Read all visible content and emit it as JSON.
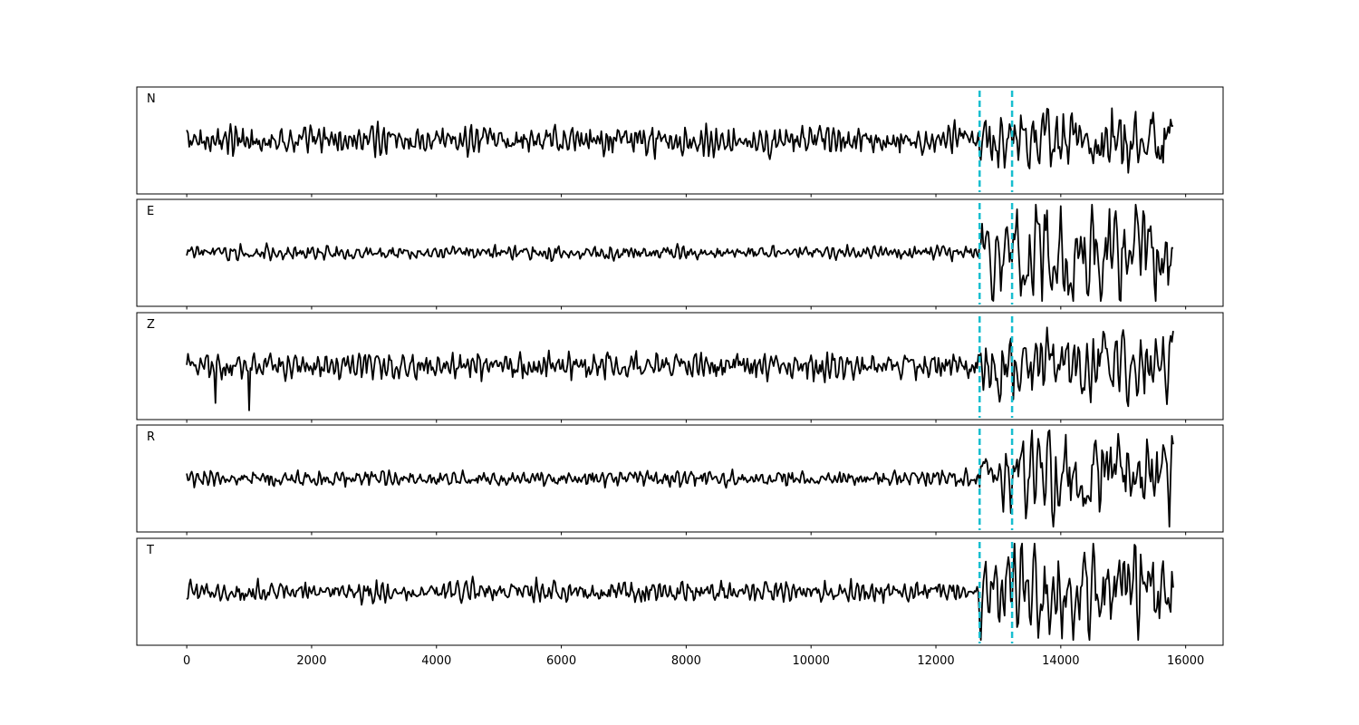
{
  "chart_data": {
    "type": "line",
    "x_range": [
      -800,
      15800
    ],
    "xlim": [
      -800,
      16600
    ],
    "xticks": [
      0,
      2000,
      4000,
      6000,
      8000,
      10000,
      12000,
      14000,
      16000
    ],
    "xtick_labels": [
      "0",
      "2000",
      "4000",
      "6000",
      "8000",
      "10000",
      "12000",
      "14000",
      "16000"
    ],
    "xlabel": "",
    "ylabel": "",
    "grid": false,
    "legend": "none",
    "markers": {
      "x": [
        12700,
        13220
      ],
      "color": "#17becf",
      "style": "dashed"
    },
    "trace_color": "#000000",
    "series": [
      {
        "label": "N",
        "noise_amp": 0.2,
        "signal_amp": 0.45,
        "ylim": [
          -1,
          1
        ]
      },
      {
        "label": "E",
        "noise_amp": 0.1,
        "signal_amp": 0.6,
        "ylim": [
          -1,
          1
        ]
      },
      {
        "label": "Z",
        "noise_amp": 0.2,
        "signal_amp": 0.45,
        "ylim": [
          -1,
          1
        ]
      },
      {
        "label": "R",
        "noise_amp": 0.12,
        "signal_amp": 0.5,
        "ylim": [
          -1,
          1
        ]
      },
      {
        "label": "T",
        "noise_amp": 0.15,
        "signal_amp": 0.55,
        "ylim": [
          -1,
          1
        ]
      }
    ]
  }
}
